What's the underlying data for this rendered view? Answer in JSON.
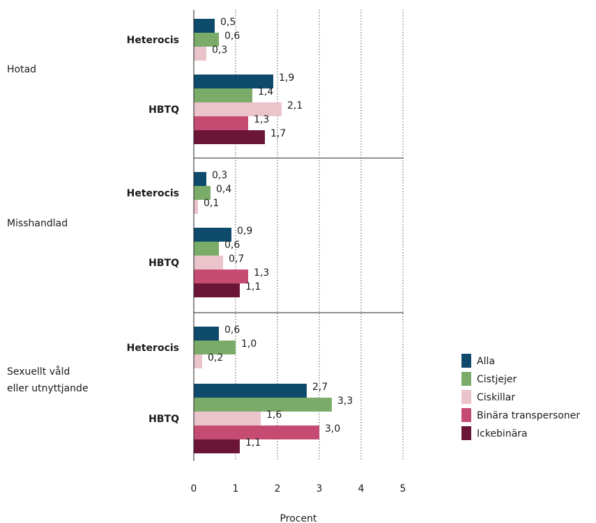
{
  "chart_data": {
    "type": "bar",
    "orientation": "horizontal",
    "xlabel": "Procent",
    "xlim": [
      0,
      5
    ],
    "xticks": [
      "0",
      "1",
      "2",
      "3",
      "4",
      "5"
    ],
    "grid": "vertical dotted",
    "legend_position": "right",
    "series": [
      {
        "name": "Alla",
        "color": "#0d4a6b"
      },
      {
        "name": "Cistjejer",
        "color": "#7aab68"
      },
      {
        "name": "Ciskillar",
        "color": "#ebc3cb"
      },
      {
        "name": "Binära transpersoner",
        "color": "#c54b72"
      },
      {
        "name": "Ickebinära",
        "color": "#6b1637"
      }
    ],
    "categories": [
      {
        "label": "Hotad",
        "groups": [
          {
            "label": "Heterocis",
            "bars": [
              {
                "series": "Alla",
                "value": 0.5,
                "text": "0,5"
              },
              {
                "series": "Cistjejer",
                "value": 0.6,
                "text": "0,6"
              },
              {
                "series": "Ciskillar",
                "value": 0.3,
                "text": "0,3"
              }
            ]
          },
          {
            "label": "HBTQ",
            "bars": [
              {
                "series": "Alla",
                "value": 1.9,
                "text": "1,9"
              },
              {
                "series": "Cistjejer",
                "value": 1.4,
                "text": "1,4"
              },
              {
                "series": "Ciskillar",
                "value": 2.1,
                "text": "2,1"
              },
              {
                "series": "Binära transpersoner",
                "value": 1.3,
                "text": "1,3"
              },
              {
                "series": "Ickebinära",
                "value": 1.7,
                "text": "1,7"
              }
            ]
          }
        ]
      },
      {
        "label": "Misshandlad",
        "groups": [
          {
            "label": "Heterocis",
            "bars": [
              {
                "series": "Alla",
                "value": 0.3,
                "text": "0,3"
              },
              {
                "series": "Cistjejer",
                "value": 0.4,
                "text": "0,4"
              },
              {
                "series": "Ciskillar",
                "value": 0.1,
                "text": "0,1"
              }
            ]
          },
          {
            "label": "HBTQ",
            "bars": [
              {
                "series": "Alla",
                "value": 0.9,
                "text": "0,9"
              },
              {
                "series": "Cistjejer",
                "value": 0.6,
                "text": "0,6"
              },
              {
                "series": "Ciskillar",
                "value": 0.7,
                "text": "0,7"
              },
              {
                "series": "Binära transpersoner",
                "value": 1.3,
                "text": "1,3"
              },
              {
                "series": "Ickebinära",
                "value": 1.1,
                "text": "1,1"
              }
            ]
          }
        ]
      },
      {
        "label": [
          "Sexuellt våld",
          "eller utnyttjande"
        ],
        "groups": [
          {
            "label": "Heterocis",
            "bars": [
              {
                "series": "Alla",
                "value": 0.6,
                "text": "0,6"
              },
              {
                "series": "Cistjejer",
                "value": 1.0,
                "text": "1,0"
              },
              {
                "series": "Ciskillar",
                "value": 0.2,
                "text": "0,2"
              }
            ]
          },
          {
            "label": "HBTQ",
            "bars": [
              {
                "series": "Alla",
                "value": 2.7,
                "text": "2,7"
              },
              {
                "series": "Cistjejer",
                "value": 3.3,
                "text": "3,3"
              },
              {
                "series": "Ciskillar",
                "value": 1.6,
                "text": "1,6"
              },
              {
                "series": "Binära transpersoner",
                "value": 3.0,
                "text": "3,0"
              },
              {
                "series": "Ickebinära",
                "value": 1.1,
                "text": "1,1"
              }
            ]
          }
        ]
      }
    ]
  }
}
